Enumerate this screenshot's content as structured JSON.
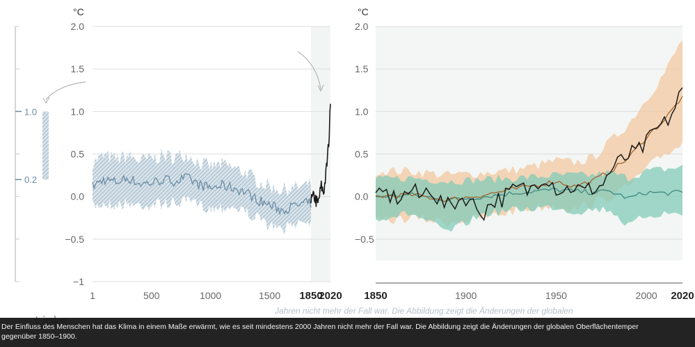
{
  "chart_data": [
    {
      "type": "line",
      "unit": "°C",
      "xlim": [
        1,
        2020
      ],
      "ylim": [
        -1,
        2.0
      ],
      "xticks": [
        "1",
        "500",
        "1000",
        "1500",
        "1850",
        "2020"
      ],
      "yticks": [
        "2.0",
        "1.5",
        "1.0",
        "0.5",
        "0.0",
        "−0.5",
        "−1"
      ],
      "instrumental_period": [
        1850,
        2020
      ],
      "series": [
        {
          "role": "reconstruction",
          "color": "#6a8ca3",
          "x": [
            1,
            100,
            200,
            300,
            400,
            500,
            600,
            700,
            800,
            900,
            1000,
            1100,
            1200,
            1300,
            1400,
            1500,
            1600,
            1700,
            1800,
            1850
          ],
          "y": [
            0.12,
            0.2,
            0.17,
            0.22,
            0.15,
            0.16,
            0.2,
            0.18,
            0.22,
            0.14,
            0.1,
            0.13,
            0.1,
            0.05,
            -0.04,
            -0.1,
            -0.16,
            -0.12,
            -0.08,
            -0.08
          ],
          "band_low": [
            -0.12,
            -0.08,
            -0.1,
            -0.08,
            -0.1,
            -0.1,
            -0.08,
            -0.08,
            -0.05,
            -0.1,
            -0.14,
            -0.12,
            -0.12,
            -0.18,
            -0.26,
            -0.34,
            -0.4,
            -0.32,
            -0.27,
            -0.3
          ],
          "band_high": [
            0.4,
            0.48,
            0.44,
            0.48,
            0.42,
            0.45,
            0.48,
            0.46,
            0.5,
            0.4,
            0.35,
            0.38,
            0.33,
            0.28,
            0.18,
            0.12,
            0.08,
            0.1,
            0.12,
            0.15
          ]
        },
        {
          "role": "observed",
          "color": "#1a1a1a",
          "x": [
            1850,
            1880,
            1910,
            1940,
            1960,
            1980,
            2000,
            2010,
            2020
          ],
          "y": [
            -0.05,
            0.0,
            -0.1,
            0.12,
            0.05,
            0.25,
            0.55,
            0.75,
            1.09
          ]
        }
      ],
      "side_bar": {
        "low": 0.2,
        "high": 1.0,
        "labels": [
          "1.0",
          "0.2"
        ],
        "color": "#6a8ca3"
      }
    },
    {
      "type": "line",
      "unit": "°C",
      "xlim": [
        1850,
        2020
      ],
      "ylim": [
        -1,
        2.0
      ],
      "xticks": [
        "1850",
        "1900",
        "1950",
        "2000",
        "2020"
      ],
      "yticks": [
        "2.0",
        "1.5",
        "1.0",
        "0.5",
        "0.0",
        "−0.5"
      ],
      "series": [
        {
          "role": "observed",
          "color": "#1a1a1a",
          "x": [
            1850,
            1855,
            1860,
            1865,
            1870,
            1875,
            1880,
            1885,
            1890,
            1895,
            1900,
            1905,
            1910,
            1915,
            1920,
            1925,
            1930,
            1935,
            1940,
            1945,
            1950,
            1955,
            1960,
            1965,
            1970,
            1975,
            1980,
            1985,
            1990,
            1995,
            2000,
            2005,
            2010,
            2015,
            2020
          ],
          "y": [
            -0.05,
            0.05,
            -0.02,
            0.0,
            0.08,
            -0.02,
            0.12,
            -0.05,
            -0.12,
            -0.05,
            0.0,
            -0.12,
            -0.18,
            -0.05,
            -0.02,
            0.05,
            0.1,
            0.06,
            0.2,
            0.25,
            0.1,
            0.08,
            0.12,
            0.05,
            0.1,
            0.12,
            0.3,
            0.4,
            0.48,
            0.52,
            0.62,
            0.78,
            0.85,
            1.0,
            1.28
          ]
        },
        {
          "role": "simulated-human-and-natural",
          "color": "#a0642c",
          "fill": "#f3c8a2",
          "x": [
            1850,
            1870,
            1890,
            1910,
            1930,
            1950,
            1960,
            1970,
            1980,
            1990,
            2000,
            2010,
            2020
          ],
          "y": [
            0.0,
            0.02,
            -0.04,
            0.02,
            0.1,
            0.18,
            0.12,
            0.18,
            0.3,
            0.45,
            0.7,
            0.9,
            1.18
          ],
          "band_low": [
            -0.3,
            -0.25,
            -0.3,
            -0.25,
            -0.15,
            -0.1,
            -0.15,
            -0.08,
            0.0,
            0.12,
            0.32,
            0.5,
            0.62
          ],
          "band_high": [
            0.3,
            0.3,
            0.25,
            0.28,
            0.32,
            0.42,
            0.4,
            0.45,
            0.65,
            0.85,
            1.15,
            1.45,
            1.85
          ]
        },
        {
          "role": "simulated-natural-only",
          "color": "#3f8a80",
          "fill": "#83cbb8",
          "x": [
            1850,
            1870,
            1890,
            1910,
            1930,
            1950,
            1960,
            1970,
            1980,
            1990,
            2000,
            2010,
            2020
          ],
          "y": [
            0.0,
            0.02,
            -0.04,
            0.0,
            0.05,
            0.08,
            0.06,
            0.05,
            0.06,
            -0.02,
            0.05,
            0.04,
            0.05
          ],
          "band_low": [
            -0.25,
            -0.2,
            -0.42,
            -0.2,
            -0.15,
            -0.12,
            -0.18,
            -0.15,
            -0.15,
            -0.35,
            -0.22,
            -0.2,
            -0.2
          ],
          "band_high": [
            0.2,
            0.22,
            0.18,
            0.2,
            0.22,
            0.25,
            0.25,
            0.25,
            0.28,
            0.22,
            0.3,
            0.32,
            0.35
          ]
        }
      ]
    }
  ],
  "ghost_text": "Jahren nicht mehr der Fall war. Die Abbildung zeigt die Änderungen der globalen",
  "links_label": "Links",
  "caption": {
    "line1": "Der Einfluss des Menschen hat das Klima in einem Maße erwärmt, wie es seit mindestens 2000 Jahren nicht mehr der Fall war. Die Abbildung zeigt die Änderungen der globalen Oberflächentemper",
    "line2": "gegenüber 1850–1900."
  }
}
